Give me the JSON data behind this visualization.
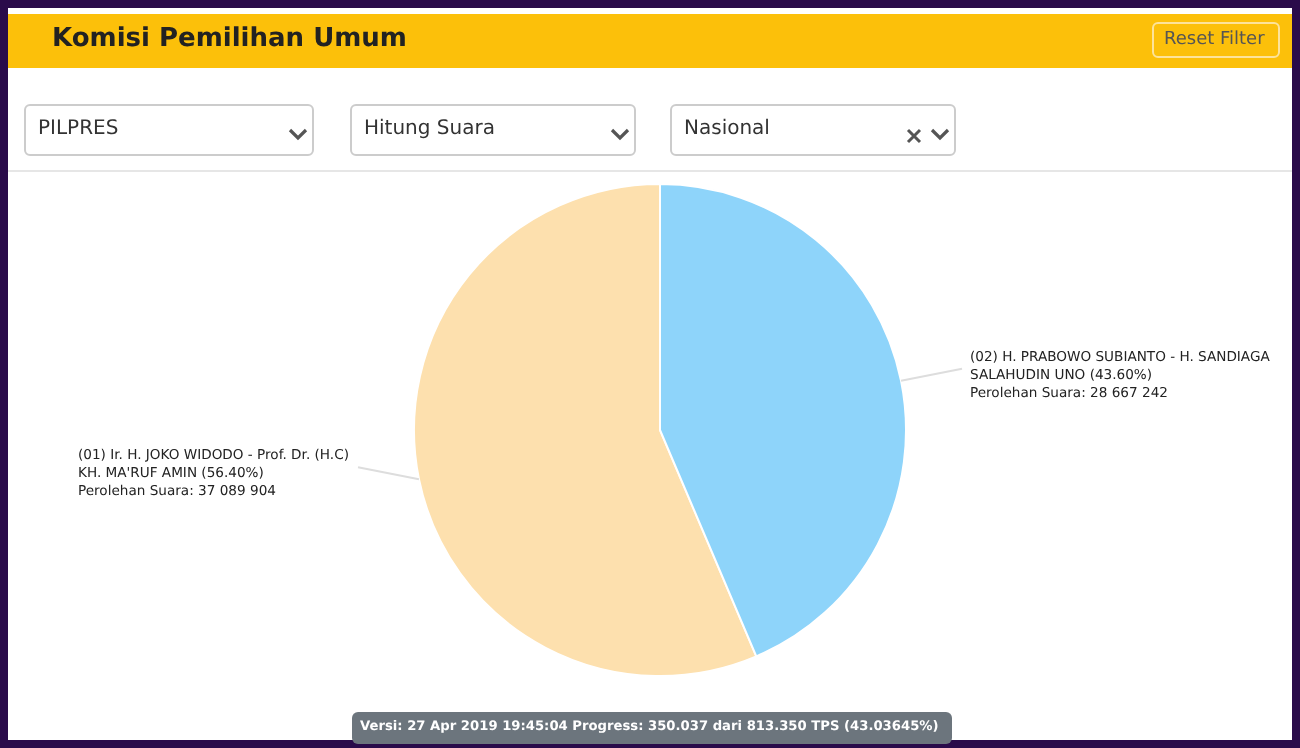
{
  "chart_data": {
    "type": "pie",
    "title": "Komisi Pemilihan Umum",
    "categories": [
      "(01) Ir. H. JOKO WIDODO - Prof. Dr. (H.C) KH. MA'RUF AMIN",
      "(02) H. PRABOWO SUBIANTO - H. SANDIAGA SALAHUDIN UNO"
    ],
    "values": [
      37089904,
      28667242
    ],
    "colors": [
      "#fde0ae",
      "#8ed4fa"
    ],
    "value_labels": [
      "(56.40%)\nPerolehan Suara: 37 089 904",
      "(43.60%)\nPerolehan Suara: 28 667 242"
    ],
    "annotations": [
      "Reset Filter",
      "PILPRES",
      "Hitung Suara",
      "Nasional",
      "Versi: 27 Apr 2019 19:45:04 Progress: 350.037 dari 813.350 TPS (43.03645%)"
    ],
    "legend": false
  }
}
